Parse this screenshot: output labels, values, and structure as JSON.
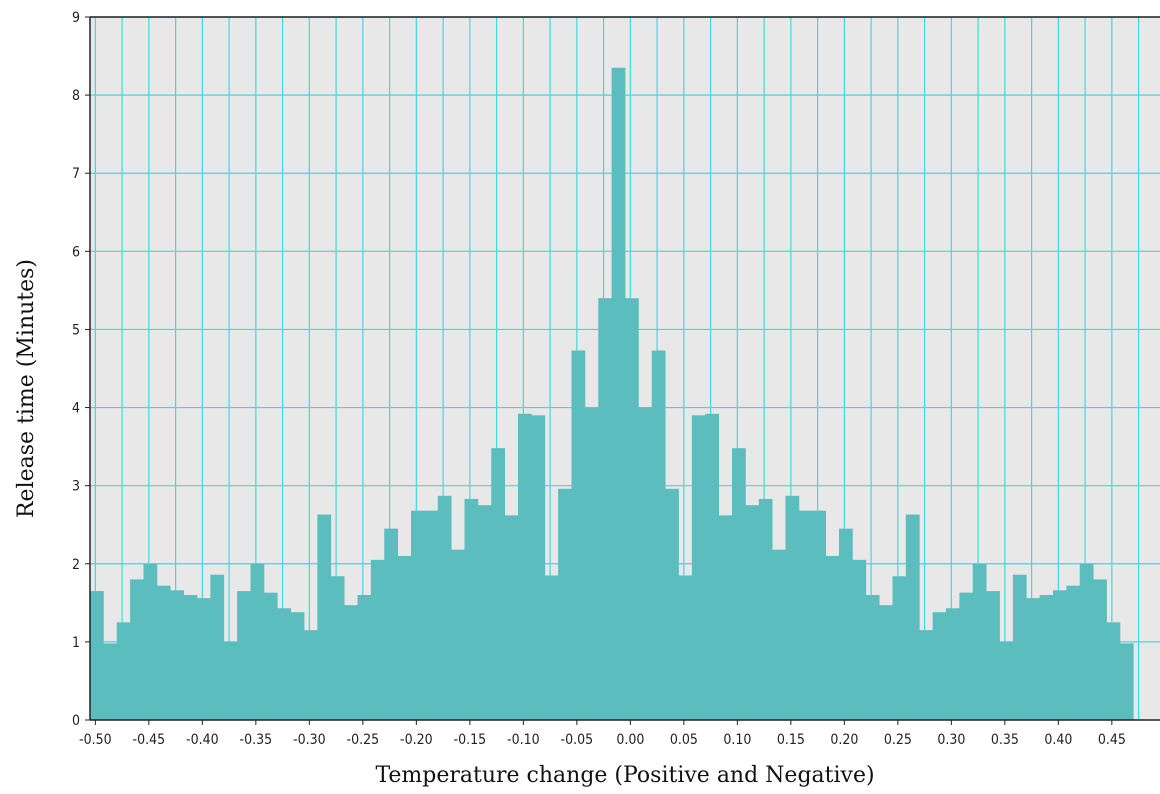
{
  "chart_data": {
    "type": "bar",
    "title": "",
    "xlabel": "Temperature change (Positive and Negative)",
    "ylabel": "Release time (Minutes)",
    "xlim": [
      -0.505,
      0.495
    ],
    "ylim": [
      0,
      9
    ],
    "grid": true,
    "bin_width": 0.0125,
    "bin_start": -0.505,
    "x_tick_labels": [
      "-0.50",
      "-0.45",
      "-0.40",
      "-0.35",
      "-0.30",
      "-0.25",
      "-0.20",
      "-0.15",
      "-0.10",
      "-0.05",
      "0.00",
      "0.05",
      "0.10",
      "0.15",
      "0.20",
      "0.25",
      "0.30",
      "0.35",
      "0.40",
      "0.45"
    ],
    "x_ticks": [
      -0.5,
      -0.45,
      -0.4,
      -0.35,
      -0.3,
      -0.25,
      -0.2,
      -0.15,
      -0.1,
      -0.05,
      0.0,
      0.05,
      0.1,
      0.15,
      0.2,
      0.25,
      0.3,
      0.35,
      0.4,
      0.45
    ],
    "y_tick_labels": [
      "0",
      "1",
      "2",
      "3",
      "4",
      "5",
      "6",
      "7",
      "8",
      "9"
    ],
    "y_ticks": [
      0,
      1,
      2,
      3,
      4,
      5,
      6,
      7,
      8,
      9
    ],
    "values": [
      1.65,
      0.98,
      1.25,
      1.8,
      2.0,
      1.72,
      1.66,
      1.6,
      1.56,
      1.86,
      1.0,
      1.65,
      2.0,
      1.63,
      1.43,
      1.38,
      1.15,
      2.63,
      1.84,
      1.47,
      1.6,
      2.05,
      2.45,
      2.1,
      2.68,
      2.68,
      2.87,
      2.18,
      2.83,
      2.75,
      3.48,
      2.62,
      3.92,
      3.9,
      1.85,
      2.96,
      4.73,
      4.0,
      5.4,
      8.35,
      5.4,
      4.0,
      4.73,
      2.96,
      1.85,
      3.9,
      3.92,
      2.62,
      3.48,
      2.75,
      2.83,
      2.18,
      2.87,
      2.68,
      2.68,
      2.1,
      2.45,
      2.05,
      1.6,
      1.47,
      1.84,
      2.63,
      1.15,
      1.38,
      1.43,
      1.63,
      2.0,
      1.65,
      1.0,
      1.86,
      1.56,
      1.6,
      1.66,
      1.72,
      2.0,
      1.8,
      1.25,
      0.98
    ],
    "colors": {
      "bar": "#5bbdbd",
      "plot_background": "#e8e8e8",
      "grid": "#3fd9e0",
      "axis": "#222222"
    }
  }
}
